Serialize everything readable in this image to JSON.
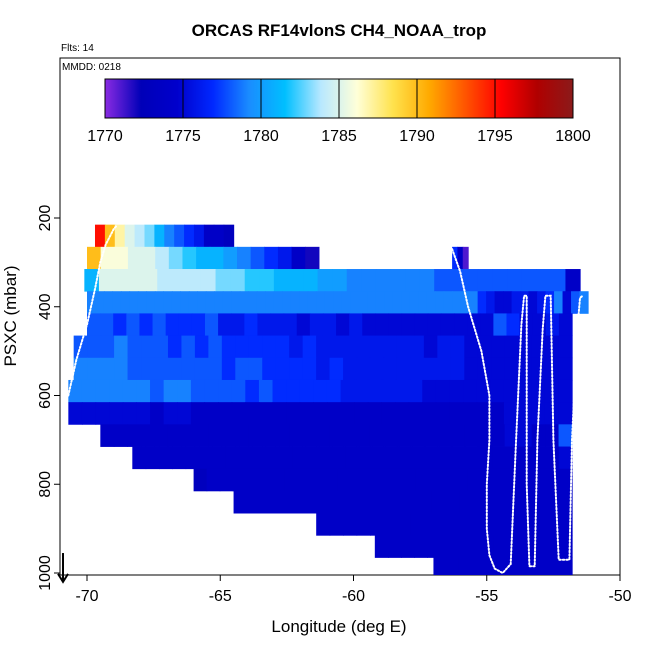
{
  "chart_data": {
    "type": "heatmap",
    "title": "ORCAS RF14vlonS CH4_NOAA_trop",
    "note_left": "Flts: 14",
    "note_box": "MMDD: 0218",
    "xlabel": "Longitude (deg E)",
    "ylabel": "PSXC (mbar)",
    "x_ticks": [
      -70,
      -65,
      -60,
      -55,
      -50
    ],
    "y_ticks": [
      200,
      400,
      600,
      800,
      1000
    ],
    "xlim": [
      -71,
      -50
    ],
    "ylim_pressure": [
      1000,
      100
    ],
    "colorbar": {
      "ticks": [
        1770,
        1775,
        1780,
        1785,
        1790,
        1795,
        1800
      ],
      "range": [
        1770,
        1800
      ],
      "colors": [
        "#8a2be2",
        "#0000b8",
        "#0000cc",
        "#0028ff",
        "#1a8cff",
        "#00bfff",
        "#b8e8ff",
        "#ffffd8",
        "#ffe24d",
        "#ffaa00",
        "#ff5500",
        "#ff0000",
        "#b00000",
        "#8b1a1a"
      ]
    },
    "cells": [
      {
        "p": [
          215,
          265
        ],
        "x": [
          -69.7,
          -64.5
        ],
        "v": [
          1795,
          1790,
          1787,
          1785,
          1784,
          1783,
          1781,
          1779,
          1778,
          1777,
          1776,
          1774,
          1774,
          1773
        ]
      },
      {
        "p": [
          265,
          315
        ],
        "x": [
          -70.0,
          -61.3
        ],
        "v": [
          1790,
          1786,
          1786,
          1785,
          1785,
          1784,
          1783,
          1782,
          1781,
          1781,
          1780,
          1779,
          1778,
          1777,
          1776,
          1774,
          1772
        ]
      },
      {
        "p": [
          265,
          315
        ],
        "x": [
          -56.3,
          -55.7
        ],
        "v": [
          1777,
          1774,
          1771
        ]
      },
      {
        "p": [
          315,
          365
        ],
        "x": [
          -70.1,
          -51.5
        ],
        "v": [
          1781,
          1785,
          1785,
          1785,
          1785,
          1784,
          1784,
          1784,
          1784,
          1783,
          1783,
          1782,
          1782,
          1781,
          1781,
          1781,
          1780,
          1780,
          1779,
          1779,
          1779,
          1779,
          1779,
          1779,
          1778,
          1778,
          1778,
          1778,
          1778,
          1778,
          1778,
          1778,
          1778,
          1774
        ]
      },
      {
        "p": [
          365,
          415
        ],
        "x": [
          -70.0,
          -51.2
        ],
        "v": [
          1779,
          1779,
          1779,
          1779,
          1779,
          1779,
          1779,
          1779,
          1779,
          1779,
          1779,
          1779,
          1779,
          1779,
          1779,
          1779,
          1779,
          1779,
          1779,
          1779,
          1779,
          1779,
          1779,
          1779,
          1779,
          1779,
          1779,
          1779,
          1779,
          1779,
          1779,
          1779,
          1779,
          1779,
          1779,
          1779,
          1779,
          1779,
          1779,
          1779,
          1779,
          1779,
          1779,
          1779,
          1779,
          1779,
          1777,
          1776,
          1775,
          1775,
          1776,
          1776,
          1775,
          1776,
          1777,
          1779,
          1775,
          1778,
          1779
        ]
      },
      {
        "p": [
          415,
          465
        ],
        "x": [
          -70.0,
          -51.8
        ],
        "v": [
          1778,
          1778,
          1777,
          1778,
          1777,
          1778,
          1777,
          1777,
          1777,
          1778,
          1776,
          1776,
          1777,
          1776,
          1776,
          1776,
          1775,
          1776,
          1776,
          1775,
          1776,
          1775,
          1775,
          1775,
          1775,
          1775,
          1775,
          1775,
          1775,
          1775,
          1775,
          1778,
          1777,
          1775,
          1775,
          1776,
          1775
        ]
      },
      {
        "p": [
          465,
          515
        ],
        "x": [
          -70.5,
          -51.8
        ],
        "v": [
          1778,
          1778,
          1778,
          1779,
          1778,
          1778,
          1778,
          1777,
          1778,
          1777,
          1778,
          1777,
          1777,
          1777,
          1777,
          1777,
          1776,
          1777,
          1776,
          1776,
          1776,
          1776,
          1776,
          1776,
          1776,
          1776,
          1775,
          1776,
          1776,
          1775,
          1775,
          1775,
          1775,
          1775,
          1775,
          1775,
          1775
        ]
      },
      {
        "p": [
          515,
          565
        ],
        "x": [
          -70.5,
          -51.8
        ],
        "v": [
          1779,
          1779,
          1779,
          1779,
          1778,
          1778,
          1778,
          1778,
          1778,
          1778,
          1778,
          1777,
          1778,
          1778,
          1777,
          1777,
          1777,
          1777,
          1776,
          1777,
          1776,
          1776,
          1776,
          1776,
          1776,
          1776,
          1776,
          1776,
          1776,
          1775,
          1775,
          1775,
          1775,
          1775,
          1775,
          1775,
          1775
        ]
      },
      {
        "p": [
          565,
          615
        ],
        "x": [
          -70.7,
          -51.8
        ],
        "v": [
          1779,
          1779,
          1779,
          1779,
          1779,
          1779,
          1778,
          1779,
          1779,
          1778,
          1778,
          1778,
          1778,
          1777,
          1778,
          1777,
          1777,
          1777,
          1777,
          1777,
          1776,
          1776,
          1776,
          1776,
          1776,
          1776,
          1775,
          1775,
          1775,
          1775,
          1775,
          1775,
          1775,
          1775,
          1775,
          1775,
          1775
        ]
      },
      {
        "p": [
          615,
          665
        ],
        "x": [
          -70.7,
          -51.8
        ],
        "v": [
          1775,
          1775,
          1775,
          1775,
          1775,
          1775,
          1774,
          1775,
          1775,
          1774,
          1774,
          1774,
          1774,
          1774,
          1774,
          1774,
          1774,
          1774,
          1774,
          1774,
          1774,
          1774,
          1774,
          1774,
          1774,
          1774,
          1774,
          1774,
          1774,
          1774,
          1774,
          1774,
          1775,
          1775,
          1775,
          1775,
          1775
        ]
      },
      {
        "p": [
          665,
          715
        ],
        "x": [
          -69.5,
          -51.8
        ],
        "v": [
          1774,
          1774,
          1774,
          1774,
          1774,
          1774,
          1774,
          1774,
          1774,
          1774,
          1774,
          1774,
          1774,
          1774,
          1774,
          1774,
          1774,
          1774,
          1774,
          1774,
          1774,
          1774,
          1774,
          1774,
          1774,
          1774,
          1774,
          1774,
          1774,
          1774,
          1775,
          1775,
          1774,
          1774,
          1778
        ]
      },
      {
        "p": [
          715,
          765
        ],
        "x": [
          -68.3,
          -51.8
        ],
        "v": [
          1774,
          1774,
          1774,
          1774,
          1774,
          1774,
          1774,
          1774,
          1774,
          1774,
          1774,
          1774,
          1774,
          1774,
          1774,
          1774,
          1774,
          1774,
          1774,
          1774,
          1774,
          1774,
          1774,
          1774,
          1774,
          1774,
          1774,
          1774,
          1774,
          1774,
          1774,
          1774,
          1775
        ]
      },
      {
        "p": [
          765,
          815
        ],
        "x": [
          -66.0,
          -51.8
        ],
        "v": [
          1773,
          1774,
          1774,
          1774,
          1774,
          1774,
          1774,
          1774,
          1774,
          1774,
          1774,
          1774,
          1774,
          1774,
          1774,
          1774,
          1774,
          1774,
          1774,
          1774,
          1774,
          1774,
          1774,
          1774,
          1774,
          1774,
          1774,
          1774,
          1774
        ]
      },
      {
        "p": [
          815,
          865
        ],
        "x": [
          -64.5,
          -51.8
        ],
        "v": [
          1774,
          1774,
          1774,
          1774,
          1774,
          1774,
          1774,
          1774,
          1774,
          1774,
          1774,
          1774,
          1774,
          1774,
          1774,
          1774,
          1774,
          1774,
          1774,
          1774,
          1774,
          1774,
          1774,
          1774
        ]
      },
      {
        "p": [
          865,
          915
        ],
        "x": [
          -61.4,
          -51.8
        ],
        "v": [
          1774,
          1774,
          1774,
          1774,
          1774,
          1774,
          1774,
          1774,
          1774,
          1774,
          1774,
          1774,
          1774,
          1774,
          1774,
          1774,
          1774,
          1774,
          1774
        ]
      },
      {
        "p": [
          915,
          965
        ],
        "x": [
          -59.2,
          -51.8
        ],
        "v": [
          1774,
          1774,
          1774,
          1774,
          1774,
          1774,
          1774,
          1774,
          1774,
          1774,
          1774,
          1774,
          1774,
          1774,
          1774
        ]
      },
      {
        "p": [
          965,
          1015
        ],
        "x": [
          -57.0,
          -51.8
        ],
        "v": [
          1774,
          1774,
          1774,
          1774,
          1774,
          1774,
          1774,
          1774,
          1774,
          1774,
          1774
        ]
      },
      {
        "p": [
          1015,
          1060
        ],
        "x": [
          -55.0,
          -51.8
        ],
        "v": [
          1774,
          1774,
          1774,
          1774,
          1774,
          1774
        ]
      }
    ],
    "flight_track": [
      [
        -70.7,
        600
      ],
      [
        -70.4,
        520
      ],
      [
        -70.0,
        440
      ],
      [
        -69.7,
        360
      ],
      [
        -69.5,
        300
      ],
      [
        -69.3,
        260
      ],
      [
        -69.0,
        225
      ],
      [
        -68.9,
        218
      ]
    ],
    "flight_track_2": [
      [
        -56.3,
        270
      ],
      [
        -56.0,
        320
      ],
      [
        -55.7,
        400
      ],
      [
        -55.2,
        500
      ],
      [
        -54.9,
        600
      ],
      [
        -54.9,
        700
      ],
      [
        -55.0,
        800
      ],
      [
        -55.0,
        900
      ],
      [
        -54.9,
        960
      ],
      [
        -54.7,
        990
      ],
      [
        -54.4,
        1000
      ],
      [
        -54.1,
        980
      ],
      [
        -53.9,
        700
      ],
      [
        -53.7,
        440
      ],
      [
        -53.6,
        375
      ],
      [
        -53.5,
        375
      ],
      [
        -53.5,
        800
      ],
      [
        -53.4,
        985
      ],
      [
        -53.2,
        985
      ],
      [
        -53.1,
        700
      ],
      [
        -52.9,
        450
      ],
      [
        -52.8,
        375
      ],
      [
        -52.6,
        375
      ],
      [
        -52.5,
        700
      ],
      [
        -52.3,
        970
      ],
      [
        -51.9,
        970
      ],
      [
        -51.8,
        700
      ],
      [
        -51.6,
        450
      ],
      [
        -51.5,
        380
      ],
      [
        -51.4,
        375
      ]
    ],
    "arrow": {
      "x": -70.9,
      "p_from": 955,
      "p_to": 1020
    }
  }
}
